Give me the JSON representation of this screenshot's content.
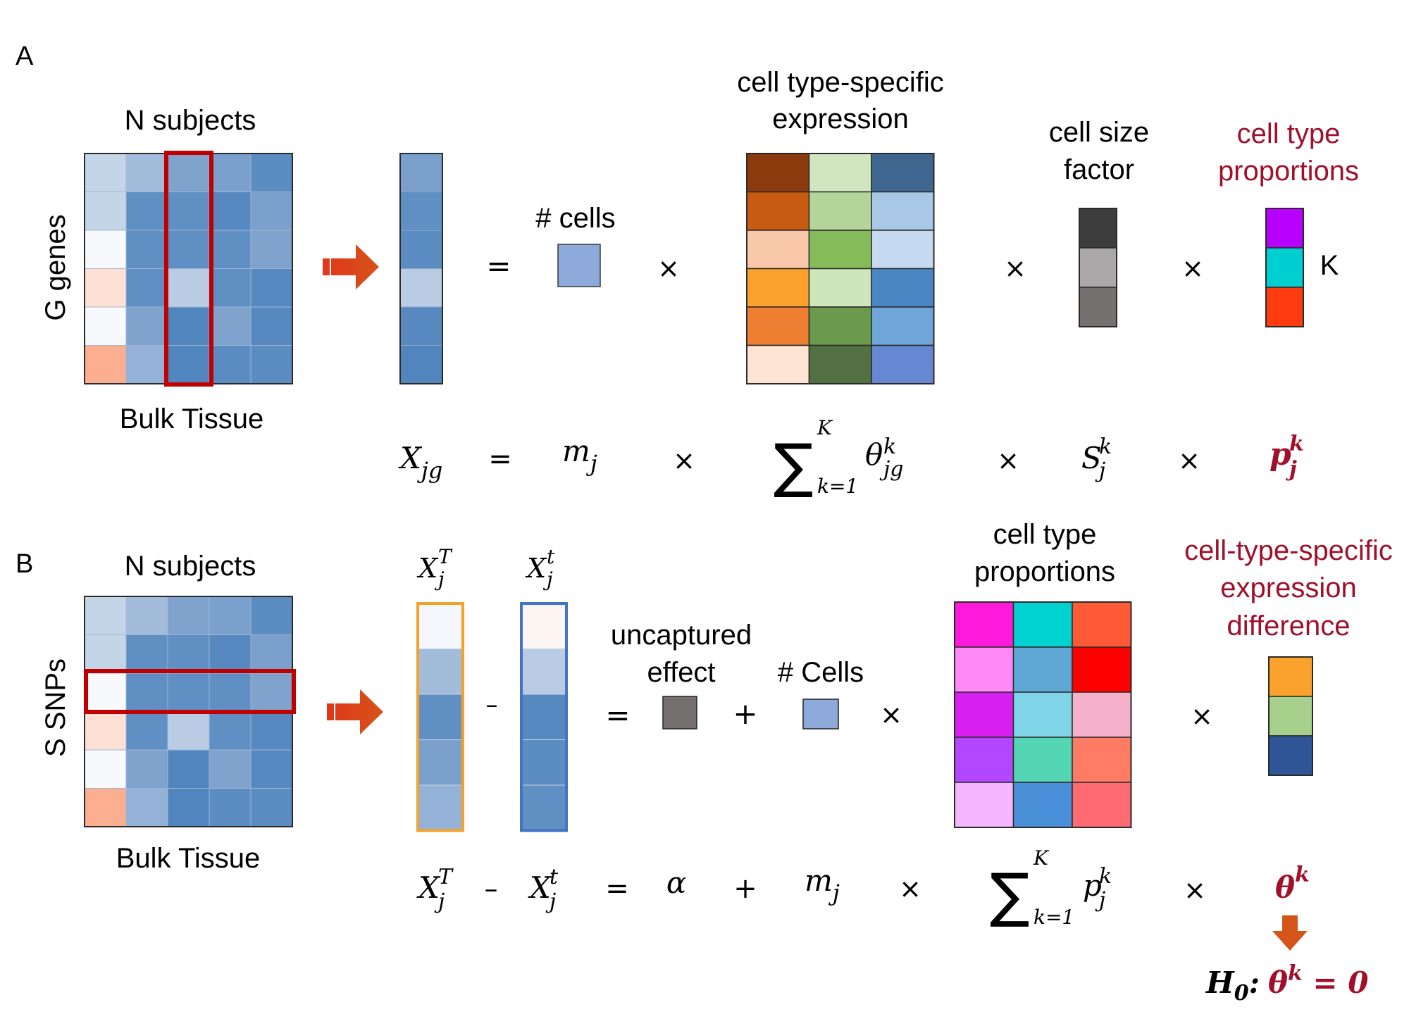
{
  "panel_a": {
    "letter": "A",
    "matrix": {
      "top_label": "N subjects",
      "side_label": "G genes",
      "bottom_label": "Bulk Tissue",
      "cells": [
        [
          "#c5d5e8",
          "#a4bcdb",
          "#7fa3cc",
          "#7aa0cb",
          "#5b8dc2"
        ],
        [
          "#c5d5e8",
          "#5f8fc3",
          "#5f8fc3",
          "#5789c0",
          "#7aa0cb"
        ],
        [
          "#f7f9fd",
          "#5f8fc3",
          "#5f8fc3",
          "#5f8fc3",
          "#7fa3cc"
        ],
        [
          "#fee0d4",
          "#5f8fc3",
          "#b9cce3",
          "#5f8fc3",
          "#5789c0"
        ],
        [
          "#f7f9fd",
          "#7fa3cc",
          "#5185bd",
          "#7fa3cc",
          "#5789c0"
        ],
        [
          "#fcae91",
          "#94b2d7",
          "#5185bd",
          "#5b8dc2",
          "#5b8dc2"
        ]
      ],
      "highlight_color": "#c00000"
    },
    "column_vector": [
      "#7aa0cb",
      "#5f8fc3",
      "#5b8dc2",
      "#b9cce3",
      "#5789c0",
      "#5185bd"
    ],
    "eq1": "=",
    "cells_label": "# cells",
    "cells_color": "#8eaadb",
    "times": "×",
    "cte": {
      "label_line1": "cell type-specific",
      "label_line2": "expression",
      "cells": [
        [
          "#8b3a0e",
          "#d0e5c0",
          "#3f668f"
        ],
        [
          "#c75b12",
          "#b5d69a",
          "#a9c8e8"
        ],
        [
          "#f8c8a8",
          "#86bb5a",
          "#c5daf0"
        ],
        [
          "#fba22c",
          "#cfe5bb",
          "#4a86c3"
        ],
        [
          "#ee7e31",
          "#6a9a4d",
          "#6fa6da"
        ],
        [
          "#fde3d3",
          "#527042",
          "#6687d1"
        ]
      ]
    },
    "size_factor": {
      "label_line1": "cell size",
      "label_line2": "factor",
      "cells": [
        "#3d3d3d",
        "#aaa8a8",
        "#767171"
      ]
    },
    "proportions": {
      "label_line1": "cell type",
      "label_line2": "proportions",
      "cells": [
        "#b800ff",
        "#00ced1",
        "#ff3b10"
      ],
      "k_label": "K"
    },
    "formula": {
      "lhs": "X",
      "lhs_sub": "jg",
      "eq": "=",
      "m": "m",
      "m_sub": "j",
      "times": "×",
      "sigma": "∑",
      "sum_upper": "K",
      "sum_lower": "k=1",
      "theta": "θ",
      "theta_sub": "jg",
      "theta_sup": "k",
      "s": "S",
      "s_sub": "j",
      "s_sup": "k",
      "p": "p",
      "p_sub": "j",
      "p_sup": "k"
    }
  },
  "panel_b": {
    "letter": "B",
    "matrix": {
      "top_label": "N subjects",
      "side_label": "S SNPs",
      "bottom_label": "Bulk Tissue",
      "cells": [
        [
          "#c5d5e8",
          "#a4bcdb",
          "#7fa3cc",
          "#7aa0cb",
          "#5b8dc2"
        ],
        [
          "#c5d5e8",
          "#5f8fc3",
          "#5f8fc3",
          "#5789c0",
          "#7aa0cb"
        ],
        [
          "#f7f9fd",
          "#5f8fc3",
          "#5f8fc3",
          "#5f8fc3",
          "#7fa3cc"
        ],
        [
          "#fee0d4",
          "#5f8fc3",
          "#b9cce3",
          "#5f8fc3",
          "#5789c0"
        ],
        [
          "#f7f9fd",
          "#7fa3cc",
          "#5185bd",
          "#7fa3cc",
          "#5789c0"
        ],
        [
          "#fcae91",
          "#94b2d7",
          "#5185bd",
          "#5b8dc2",
          "#5b8dc2"
        ]
      ]
    },
    "xT": {
      "base": "X",
      "sub": "j",
      "sup": "T",
      "border": "#f4a128",
      "cells": [
        "#f4f7fb",
        "#a4bcdb",
        "#5f8fc3",
        "#7aa0cb",
        "#94b2d7"
      ]
    },
    "xt": {
      "base": "X",
      "sub": "j",
      "sup": "t",
      "border": "#4472c4",
      "cells": [
        "#fcf6f2",
        "#b9cce3",
        "#5789c0",
        "#5b8dc2",
        "#5f8fc3"
      ]
    },
    "minus": "–",
    "eq": "=",
    "uncaptured": {
      "line1": "uncaptured",
      "line2": "effect",
      "color": "#767171"
    },
    "plus": "+",
    "cells_label": "# Cells",
    "cells_color": "#8eaadb",
    "times": "×",
    "proportions": {
      "label_line1": "cell type",
      "label_line2": "proportions",
      "cells": [
        [
          "#ff1ad9",
          "#00d1d1",
          "#ff5a35"
        ],
        [
          "#ff8af7",
          "#5fa8d6",
          "#ff0000"
        ],
        [
          "#d81ff0",
          "#7fd4e8",
          "#f4b0c8"
        ],
        [
          "#b347ff",
          "#54d6b5",
          "#ff7b63"
        ],
        [
          "#f5b5ff",
          "#4a90d9",
          "#ff6b72"
        ]
      ]
    },
    "csed": {
      "line1": "cell-type-specific",
      "line2": "expression",
      "line3": "difference",
      "cells": [
        "#fba22c",
        "#a7d08c",
        "#2f5597"
      ]
    },
    "formula": {
      "x1": "X",
      "x1_sub": "j",
      "x1_sup": "T",
      "minus": "–",
      "x2": "X",
      "x2_sub": "j",
      "x2_sup": "t",
      "eq": "=",
      "alpha": "α",
      "plus": "+",
      "m": "m",
      "m_sub": "j",
      "times": "×",
      "sigma": "∑",
      "sum_upper": "K",
      "sum_lower": "k=1",
      "p": "p",
      "p_sub": "j",
      "p_sup": "k",
      "theta": "θ",
      "theta_sup": "k"
    },
    "hypothesis": {
      "h": "H",
      "h_sub": "0",
      "colon": ":",
      "theta": "θ",
      "theta_sup": "k",
      "rest": " = 0"
    }
  },
  "colors": {
    "accent_red": "#a0102a",
    "arrow": "#c83c0c",
    "grid_line": "#3a3a3a"
  }
}
